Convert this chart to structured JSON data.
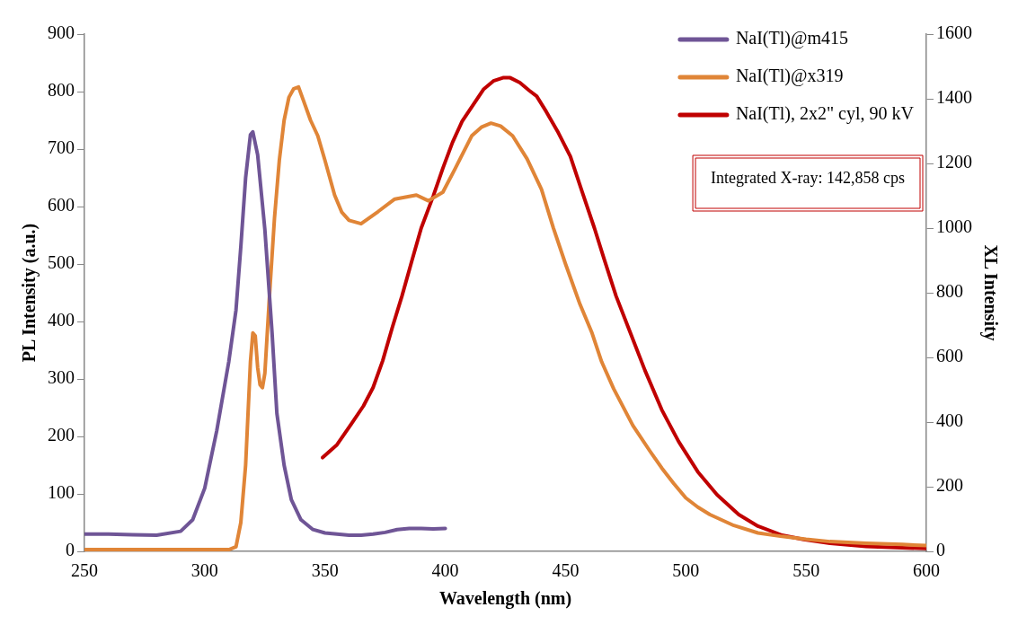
{
  "chart_data": {
    "type": "line",
    "xlabel": "Wavelength (nm)",
    "ylabel": "PL Intensity (a.u.)",
    "y2label": "XL Intensity",
    "xlim": [
      250,
      600
    ],
    "xticks": [
      250,
      300,
      350,
      400,
      450,
      500,
      550,
      600
    ],
    "ylim": [
      0,
      900
    ],
    "yticks": [
      0,
      100,
      200,
      300,
      400,
      500,
      600,
      700,
      800,
      900
    ],
    "y2lim": [
      0,
      1600
    ],
    "y2ticks": [
      0,
      200,
      400,
      600,
      800,
      1000,
      1200,
      1400,
      1600
    ],
    "grid": false,
    "legend": "top right",
    "marker": "none",
    "line_style": "solid",
    "annotations": [
      "Integrated X-ray: 142,858 cps"
    ],
    "series": [
      {
        "name": "NaI(Tl)@m415",
        "color": "#6f5596",
        "x": [
          250,
          260,
          270,
          280,
          290,
          295,
          300,
          305,
          310,
          313,
          315,
          317,
          319,
          320,
          322,
          325,
          328,
          330,
          333,
          336,
          340,
          345,
          350,
          355,
          360,
          365,
          370,
          375,
          380,
          385,
          390,
          395,
          400
        ],
        "values": [
          30,
          30,
          29,
          28,
          35,
          55,
          110,
          210,
          330,
          420,
          530,
          650,
          725,
          730,
          690,
          560,
          380,
          240,
          150,
          90,
          55,
          38,
          32,
          30,
          28,
          28,
          30,
          33,
          38,
          40,
          40,
          39,
          40
        ]
      },
      {
        "name": "NaI(Tl)@x319",
        "color": "#e08537",
        "x": [
          250,
          310,
          313,
          315,
          317,
          319,
          320,
          321,
          322,
          323,
          324,
          325,
          327,
          329,
          331,
          333,
          335,
          337,
          339,
          341,
          344,
          347,
          350,
          354,
          357,
          360,
          365,
          372,
          379,
          388,
          393,
          399,
          404,
          411,
          415,
          419,
          423,
          428,
          434,
          440,
          445,
          450,
          456,
          461,
          465,
          470,
          478,
          485,
          490,
          495,
          500,
          505,
          510,
          520,
          530,
          540,
          550,
          560,
          575,
          590,
          600
        ],
        "values": [
          3,
          3,
          8,
          50,
          150,
          330,
          380,
          375,
          320,
          290,
          285,
          310,
          450,
          580,
          680,
          750,
          790,
          805,
          808,
          785,
          750,
          723,
          680,
          620,
          590,
          576,
          570,
          591,
          613,
          620,
          610,
          625,
          665,
          723,
          738,
          745,
          740,
          723,
          683,
          630,
          562,
          500,
          430,
          380,
          330,
          283,
          219,
          175,
          145,
          118,
          93,
          77,
          64,
          45,
          32,
          26,
          21,
          17,
          14,
          12,
          10
        ]
      },
      {
        "name": "NaI(Tl), 2x2\" cyl, 90 kV",
        "color": "#c00000",
        "axis": "y2",
        "x": [
          349,
          355,
          361,
          366,
          370,
          374,
          378,
          382,
          386,
          390,
          395,
          399,
          403,
          407,
          412,
          416,
          420,
          424,
          427,
          431,
          435,
          438,
          442,
          447,
          452,
          457,
          462,
          466,
          471,
          477,
          483,
          490,
          497,
          505,
          513,
          522,
          530,
          540,
          549,
          560,
          575,
          590,
          600
        ],
        "values": [
          290,
          330,
          395,
          450,
          507,
          590,
          693,
          790,
          896,
          1000,
          1099,
          1185,
          1265,
          1330,
          1386,
          1430,
          1455,
          1465,
          1465,
          1450,
          1425,
          1408,
          1360,
          1295,
          1222,
          1110,
          1000,
          905,
          790,
          675,
          560,
          438,
          340,
          246,
          175,
          114,
          78,
          50,
          37,
          25,
          15,
          11,
          9
        ]
      }
    ]
  }
}
